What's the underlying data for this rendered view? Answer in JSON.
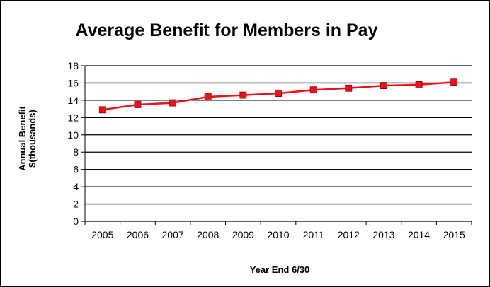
{
  "chart_data": {
    "type": "line",
    "title": "Average Benefit for Members in Pay",
    "xlabel": "Year End 6/30",
    "ylabel_lines": [
      "Annual Benefit",
      "$(thousands)"
    ],
    "categories": [
      "2005",
      "2006",
      "2007",
      "2008",
      "2009",
      "2010",
      "2011",
      "2012",
      "2013",
      "2014",
      "2015"
    ],
    "series": [
      {
        "values": [
          12.9,
          13.5,
          13.7,
          14.4,
          14.6,
          14.8,
          15.2,
          15.4,
          15.7,
          15.8,
          16.1
        ],
        "color": "#e8141c"
      }
    ],
    "ylim": [
      0,
      18
    ],
    "yticks": [
      0,
      2,
      4,
      6,
      8,
      10,
      12,
      14,
      16,
      18
    ],
    "grid": "horizontal",
    "legend": "none"
  }
}
